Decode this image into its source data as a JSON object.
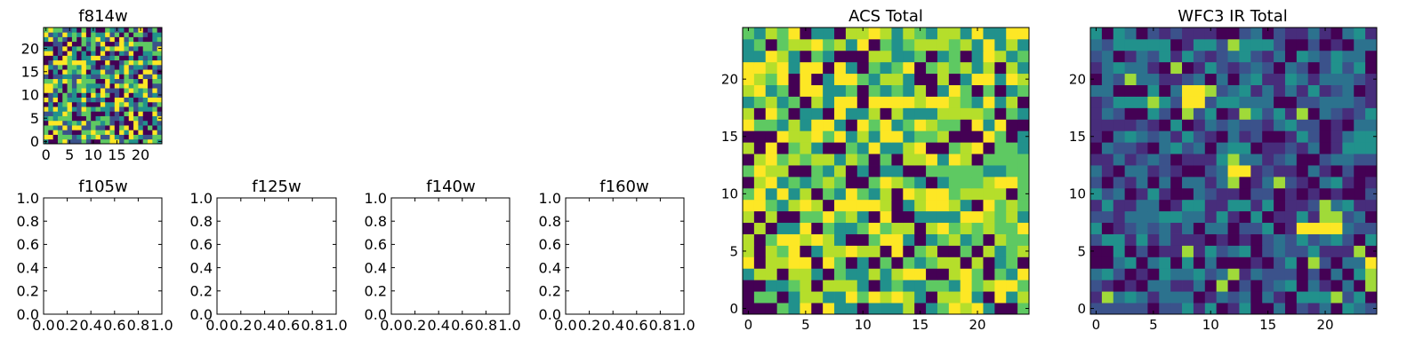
{
  "figure": {
    "panel_titles": {
      "f814w": "f814w",
      "f105w": "f105w",
      "f125w": "f125w",
      "f140w": "f140w",
      "f160w": "f160w",
      "acs_total": "ACS Total",
      "wfc3_total": "WFC3 IR Total"
    }
  },
  "chart_data": [
    {
      "id": "f814w",
      "type": "heatmap",
      "title": "f814w",
      "xlim": [
        -0.5,
        24.5
      ],
      "ylim": [
        -0.5,
        24.5
      ],
      "xticks": [
        0,
        5,
        10,
        15,
        20
      ],
      "yticks": [
        0,
        5,
        10,
        15,
        20
      ],
      "grid_shape": [
        25,
        25
      ],
      "colormap": "viridis",
      "palette": [
        "#440154",
        "#3b528b",
        "#21918c",
        "#5ec962",
        "#fde725"
      ],
      "seed": 814,
      "grid": false,
      "legend": "none"
    },
    {
      "id": "f105w",
      "type": "heatmap",
      "title": "f105w",
      "xlim": [
        0.0,
        1.0
      ],
      "ylim": [
        0.0,
        1.0
      ],
      "xticks": [
        "0.0",
        "0.2",
        "0.4",
        "0.6",
        "0.8",
        "1.0"
      ],
      "yticks": [
        "0.0",
        "0.2",
        "0.4",
        "0.6",
        "0.8",
        "1.0"
      ],
      "empty": true
    },
    {
      "id": "f125w",
      "type": "heatmap",
      "title": "f125w",
      "xlim": [
        0.0,
        1.0
      ],
      "ylim": [
        0.0,
        1.0
      ],
      "xticks": [
        "0.0",
        "0.2",
        "0.4",
        "0.6",
        "0.8",
        "1.0"
      ],
      "yticks": [
        "0.0",
        "0.2",
        "0.4",
        "0.6",
        "0.8",
        "1.0"
      ],
      "empty": true
    },
    {
      "id": "f140w",
      "type": "heatmap",
      "title": "f140w",
      "xlim": [
        0.0,
        1.0
      ],
      "ylim": [
        0.0,
        1.0
      ],
      "xticks": [
        "0.0",
        "0.2",
        "0.4",
        "0.6",
        "0.8",
        "1.0"
      ],
      "yticks": [
        "0.0",
        "0.2",
        "0.4",
        "0.6",
        "0.8",
        "1.0"
      ],
      "empty": true
    },
    {
      "id": "f160w",
      "type": "heatmap",
      "title": "f160w",
      "xlim": [
        0.0,
        1.0
      ],
      "ylim": [
        0.0,
        1.0
      ],
      "xticks": [
        "0.0",
        "0.2",
        "0.4",
        "0.6",
        "0.8",
        "1.0"
      ],
      "yticks": [
        "0.0",
        "0.2",
        "0.4",
        "0.6",
        "0.8",
        "1.0"
      ],
      "empty": true
    },
    {
      "id": "acs_total",
      "type": "heatmap",
      "title": "ACS Total",
      "xlim": [
        -0.5,
        24.5
      ],
      "ylim": [
        -0.5,
        24.5
      ],
      "xticks": [
        0,
        5,
        10,
        15,
        20
      ],
      "yticks": [
        0,
        5,
        10,
        15,
        20
      ],
      "grid_shape": [
        25,
        25
      ],
      "colormap": "viridis",
      "palette": [
        "#440154",
        "#21918c",
        "#5ec962",
        "#b5de2b",
        "#fde725"
      ],
      "seed": 2048,
      "grid": false,
      "legend": "none"
    },
    {
      "id": "wfc3_total",
      "type": "heatmap",
      "title": "WFC3 IR Total",
      "xlim": [
        -0.5,
        24.5
      ],
      "ylim": [
        -0.5,
        24.5
      ],
      "xticks": [
        0,
        5,
        10,
        15,
        20
      ],
      "yticks": [
        0,
        5,
        10,
        15,
        20
      ],
      "grid_shape": [
        25,
        25
      ],
      "colormap": "viridis",
      "palette": [
        "#440154",
        "#472d7b",
        "#3b528b",
        "#2c728e",
        "#21918c",
        "#fde725"
      ],
      "seed": 16043,
      "hotspots": [
        {
          "x": 8,
          "y": 19,
          "v": 1.0
        },
        {
          "x": 9,
          "y": 19,
          "v": 1.0
        },
        {
          "x": 8,
          "y": 18,
          "v": 1.0
        },
        {
          "x": 9,
          "y": 18,
          "v": 1.0
        },
        {
          "x": 8,
          "y": 17,
          "v": 0.88
        },
        {
          "x": 12,
          "y": 12,
          "v": 1.0
        },
        {
          "x": 13,
          "y": 12,
          "v": 1.0
        },
        {
          "x": 12,
          "y": 13,
          "v": 0.85
        },
        {
          "x": 12,
          "y": 11,
          "v": 0.85
        },
        {
          "x": 18,
          "y": 7,
          "v": 1.0
        },
        {
          "x": 19,
          "y": 7,
          "v": 1.0
        },
        {
          "x": 20,
          "y": 7,
          "v": 1.0
        },
        {
          "x": 21,
          "y": 7,
          "v": 1.0
        },
        {
          "x": 20,
          "y": 8,
          "v": 0.82
        },
        {
          "x": 21,
          "y": 8,
          "v": 0.82
        },
        {
          "x": 24,
          "y": 4,
          "v": 1.0
        }
      ],
      "grid": false,
      "legend": "none"
    }
  ]
}
